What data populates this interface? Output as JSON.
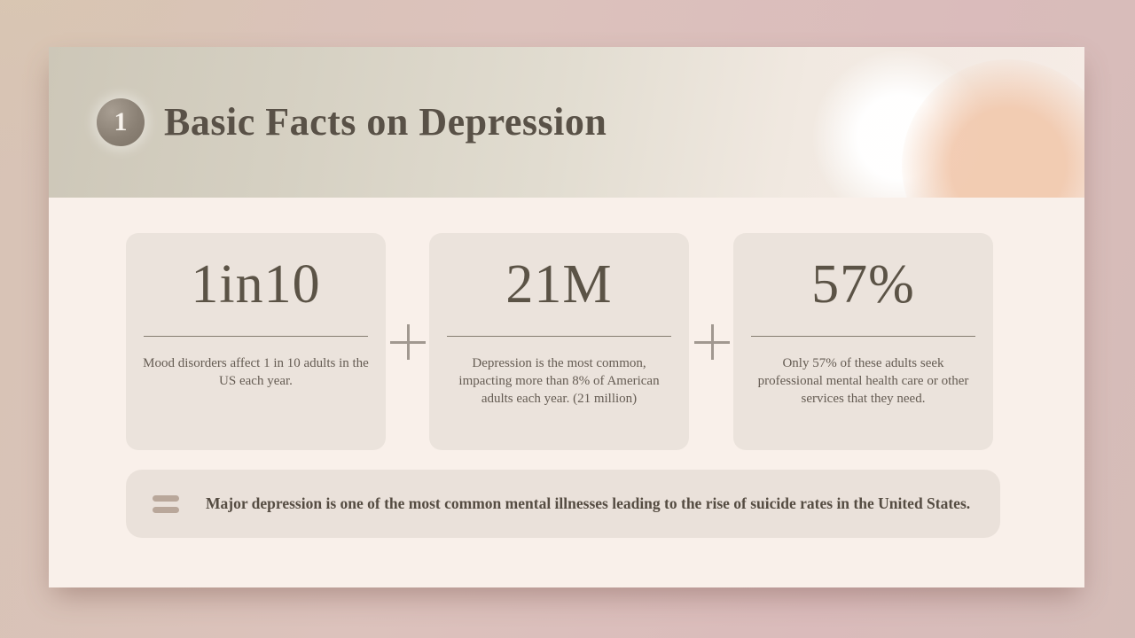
{
  "slide": {
    "badge_number": "1",
    "title": "Basic Facts on Depression"
  },
  "stats": [
    {
      "value": "1in10",
      "description": "Mood disorders affect 1 in 10 adults in the US each year."
    },
    {
      "value": "21M",
      "description": "Depression is the most common, impacting more than 8% of American adults each year. (21 million)"
    },
    {
      "value": "57%",
      "description": "Only 57% of these adults seek professional mental health care or other services that they need."
    }
  ],
  "icons": {
    "plus": "+",
    "equals": "="
  },
  "summary": "Major depression is one of the most common mental illnesses leading to the rise of suicide rates in the United States.",
  "colors": {
    "outer_background": "#d8c0ba",
    "slide_background": "#f9f0ea",
    "header_band_left": "#cdc7b8",
    "header_band_right": "#f6ece6",
    "bokeh_peach": "#f2c9ae",
    "card_background": "#ebe3dc",
    "banner_background": "#eae1da",
    "badge_fill": "#8b8175",
    "heading_text": "#595147",
    "stat_text": "#5b5346",
    "body_text": "#655c53",
    "operator": "#a19890",
    "equals_bar": "#b9a79a"
  }
}
